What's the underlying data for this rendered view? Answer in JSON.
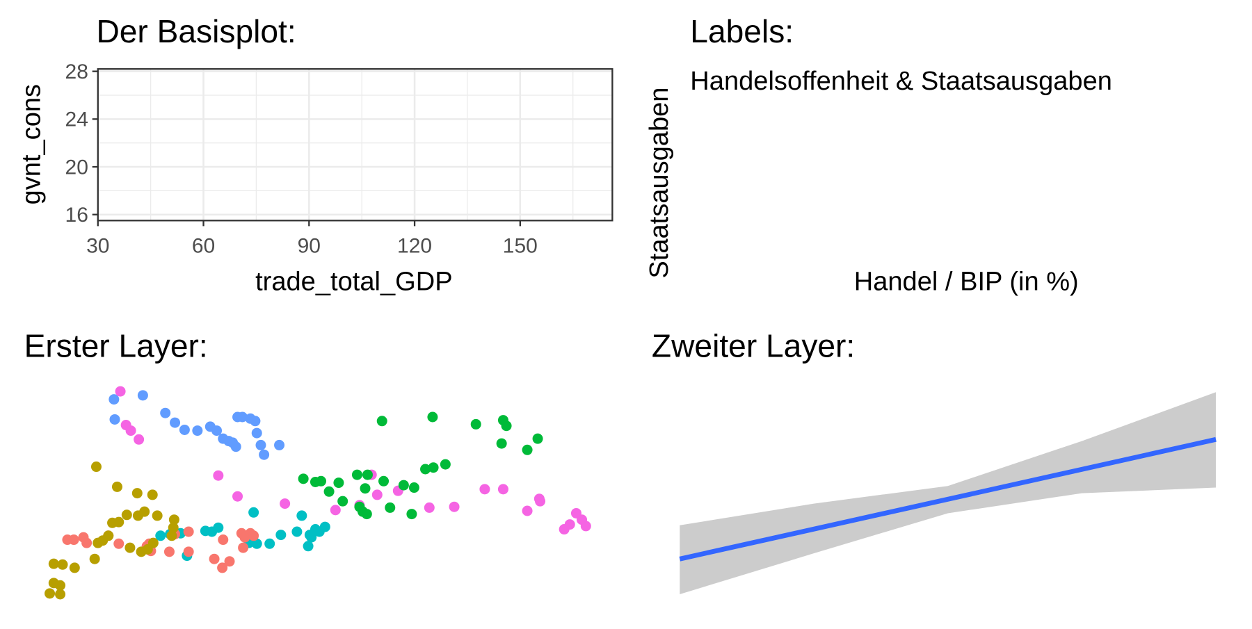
{
  "chart_data": [
    {
      "type": "blank",
      "title": "Der Basisplot:",
      "x_label": "trade_total_GDP",
      "y_label": "gvnt_cons",
      "xlim": [
        30,
        176.2
      ],
      "ylim": [
        15.5,
        28.2
      ],
      "xticks": [
        30,
        60,
        90,
        120,
        150
      ],
      "yticks": [
        16,
        20,
        24,
        28
      ],
      "grid": true
    },
    {
      "type": "blank",
      "title": "Labels:",
      "subtitle": "Handelsoffenheit & Staatsausgaben",
      "x_label": "Handel / BIP (in %)",
      "y_label": "Staatsausgaben"
    },
    {
      "type": "scatter",
      "title": "Erster Layer:",
      "xlim": [
        40,
        750
      ],
      "ylim": [
        50,
        320
      ],
      "series": [
        {
          "color": "#619CFF",
          "x": [
            142,
            178,
            143,
            206,
            218,
            230,
            246,
            262,
            270,
            278,
            290,
            296,
            302,
            312,
            318,
            320,
            325,
            329,
            348,
            294,
            285
          ],
          "values": [
            302,
            307,
            277,
            285,
            273,
            264,
            263,
            268,
            263,
            253,
            248,
            280,
            280,
            278,
            275,
            260,
            245,
            233,
            245,
            243,
            250
          ]
        },
        {
          "color": "#F564E3",
          "x": [
            150,
            157,
            163,
            173,
            272,
            296,
            355,
            418,
            448,
            463,
            470,
            496,
            535,
            566,
            604,
            627,
            657,
            672,
            673,
            703,
            710,
            718,
            725,
            730
          ],
          "values": [
            312,
            270,
            263,
            252,
            207,
            181,
            172,
            164,
            170,
            208,
            183,
            188,
            167,
            168,
            190,
            190,
            163,
            178,
            175,
            140,
            146,
            160,
            152,
            144
          ]
        },
        {
          "color": "#00BA38",
          "x": [
            476,
            539,
            593,
            627,
            631,
            670,
            625,
            657,
            555,
            540,
            530,
            378,
            393,
            400,
            422,
            445,
            458,
            478,
            503,
            516,
            410,
            455,
            427,
            448,
            452,
            457,
            486,
            513
          ],
          "values": [
            275,
            280,
            271,
            276,
            269,
            253,
            247,
            239,
            221,
            217,
            215,
            203,
            199,
            200,
            198,
            208,
            208,
            200,
            195,
            192,
            187,
            191,
            175,
            168,
            162,
            159,
            167,
            159
          ]
        },
        {
          "color": "#00BFC4",
          "x": [
            316,
            376,
            200,
            212,
            225,
            233,
            256,
            264,
            272,
            310,
            320,
            336,
            350,
            370,
            384,
            388,
            393,
            398,
            405,
            386
          ],
          "values": [
            161,
            157,
            132,
            134,
            135,
            107,
            138,
            137,
            142,
            123,
            122,
            122,
            133,
            137,
            119,
            130,
            140,
            137,
            143,
            133
          ]
        },
        {
          "color": "#F8766D",
          "x": [
            84,
            92,
            104,
            108,
            135,
            148,
            183,
            186,
            188,
            211,
            218,
            235,
            235,
            267,
            277,
            286,
            278,
            301,
            305,
            312,
            303,
            316
          ],
          "values": [
            127,
            127,
            130,
            123,
            132,
            122,
            119,
            122,
            113,
            112,
            134,
            112,
            137,
            103,
            92,
            100,
            127,
            135,
            130,
            135,
            117,
            132
          ]
        },
        {
          "color": "#B79F00",
          "x": [
            120,
            146,
            171,
            190,
            172,
            180,
            196,
            217,
            140,
            148,
            135,
            122,
            128,
            118,
            162,
            176,
            184,
            191,
            214,
            216,
            67,
            78,
            93,
            67,
            75,
            62,
            75,
            158
          ],
          "values": [
            218,
            193,
            185,
            183,
            157,
            162,
            157,
            152,
            148,
            149,
            132,
            123,
            126,
            103,
            117,
            112,
            115,
            123,
            132,
            142,
            97,
            96,
            92,
            73,
            70,
            60,
            59,
            158
          ]
        }
      ]
    },
    {
      "type": "line",
      "title": "Zweiter Layer:",
      "xlim": [
        0,
        100
      ],
      "ylim": [
        50,
        320
      ],
      "series": [
        {
          "color": "#3366FF",
          "x": [
            0,
            100
          ],
          "values": [
            103,
            252
          ]
        }
      ],
      "ribbon": {
        "color": "#cccccc",
        "x": [
          0,
          25,
          50,
          75,
          100
        ],
        "lower": [
          59,
          110,
          160,
          185,
          192
        ],
        "upper": [
          145,
          172,
          194,
          250,
          311
        ]
      }
    }
  ]
}
